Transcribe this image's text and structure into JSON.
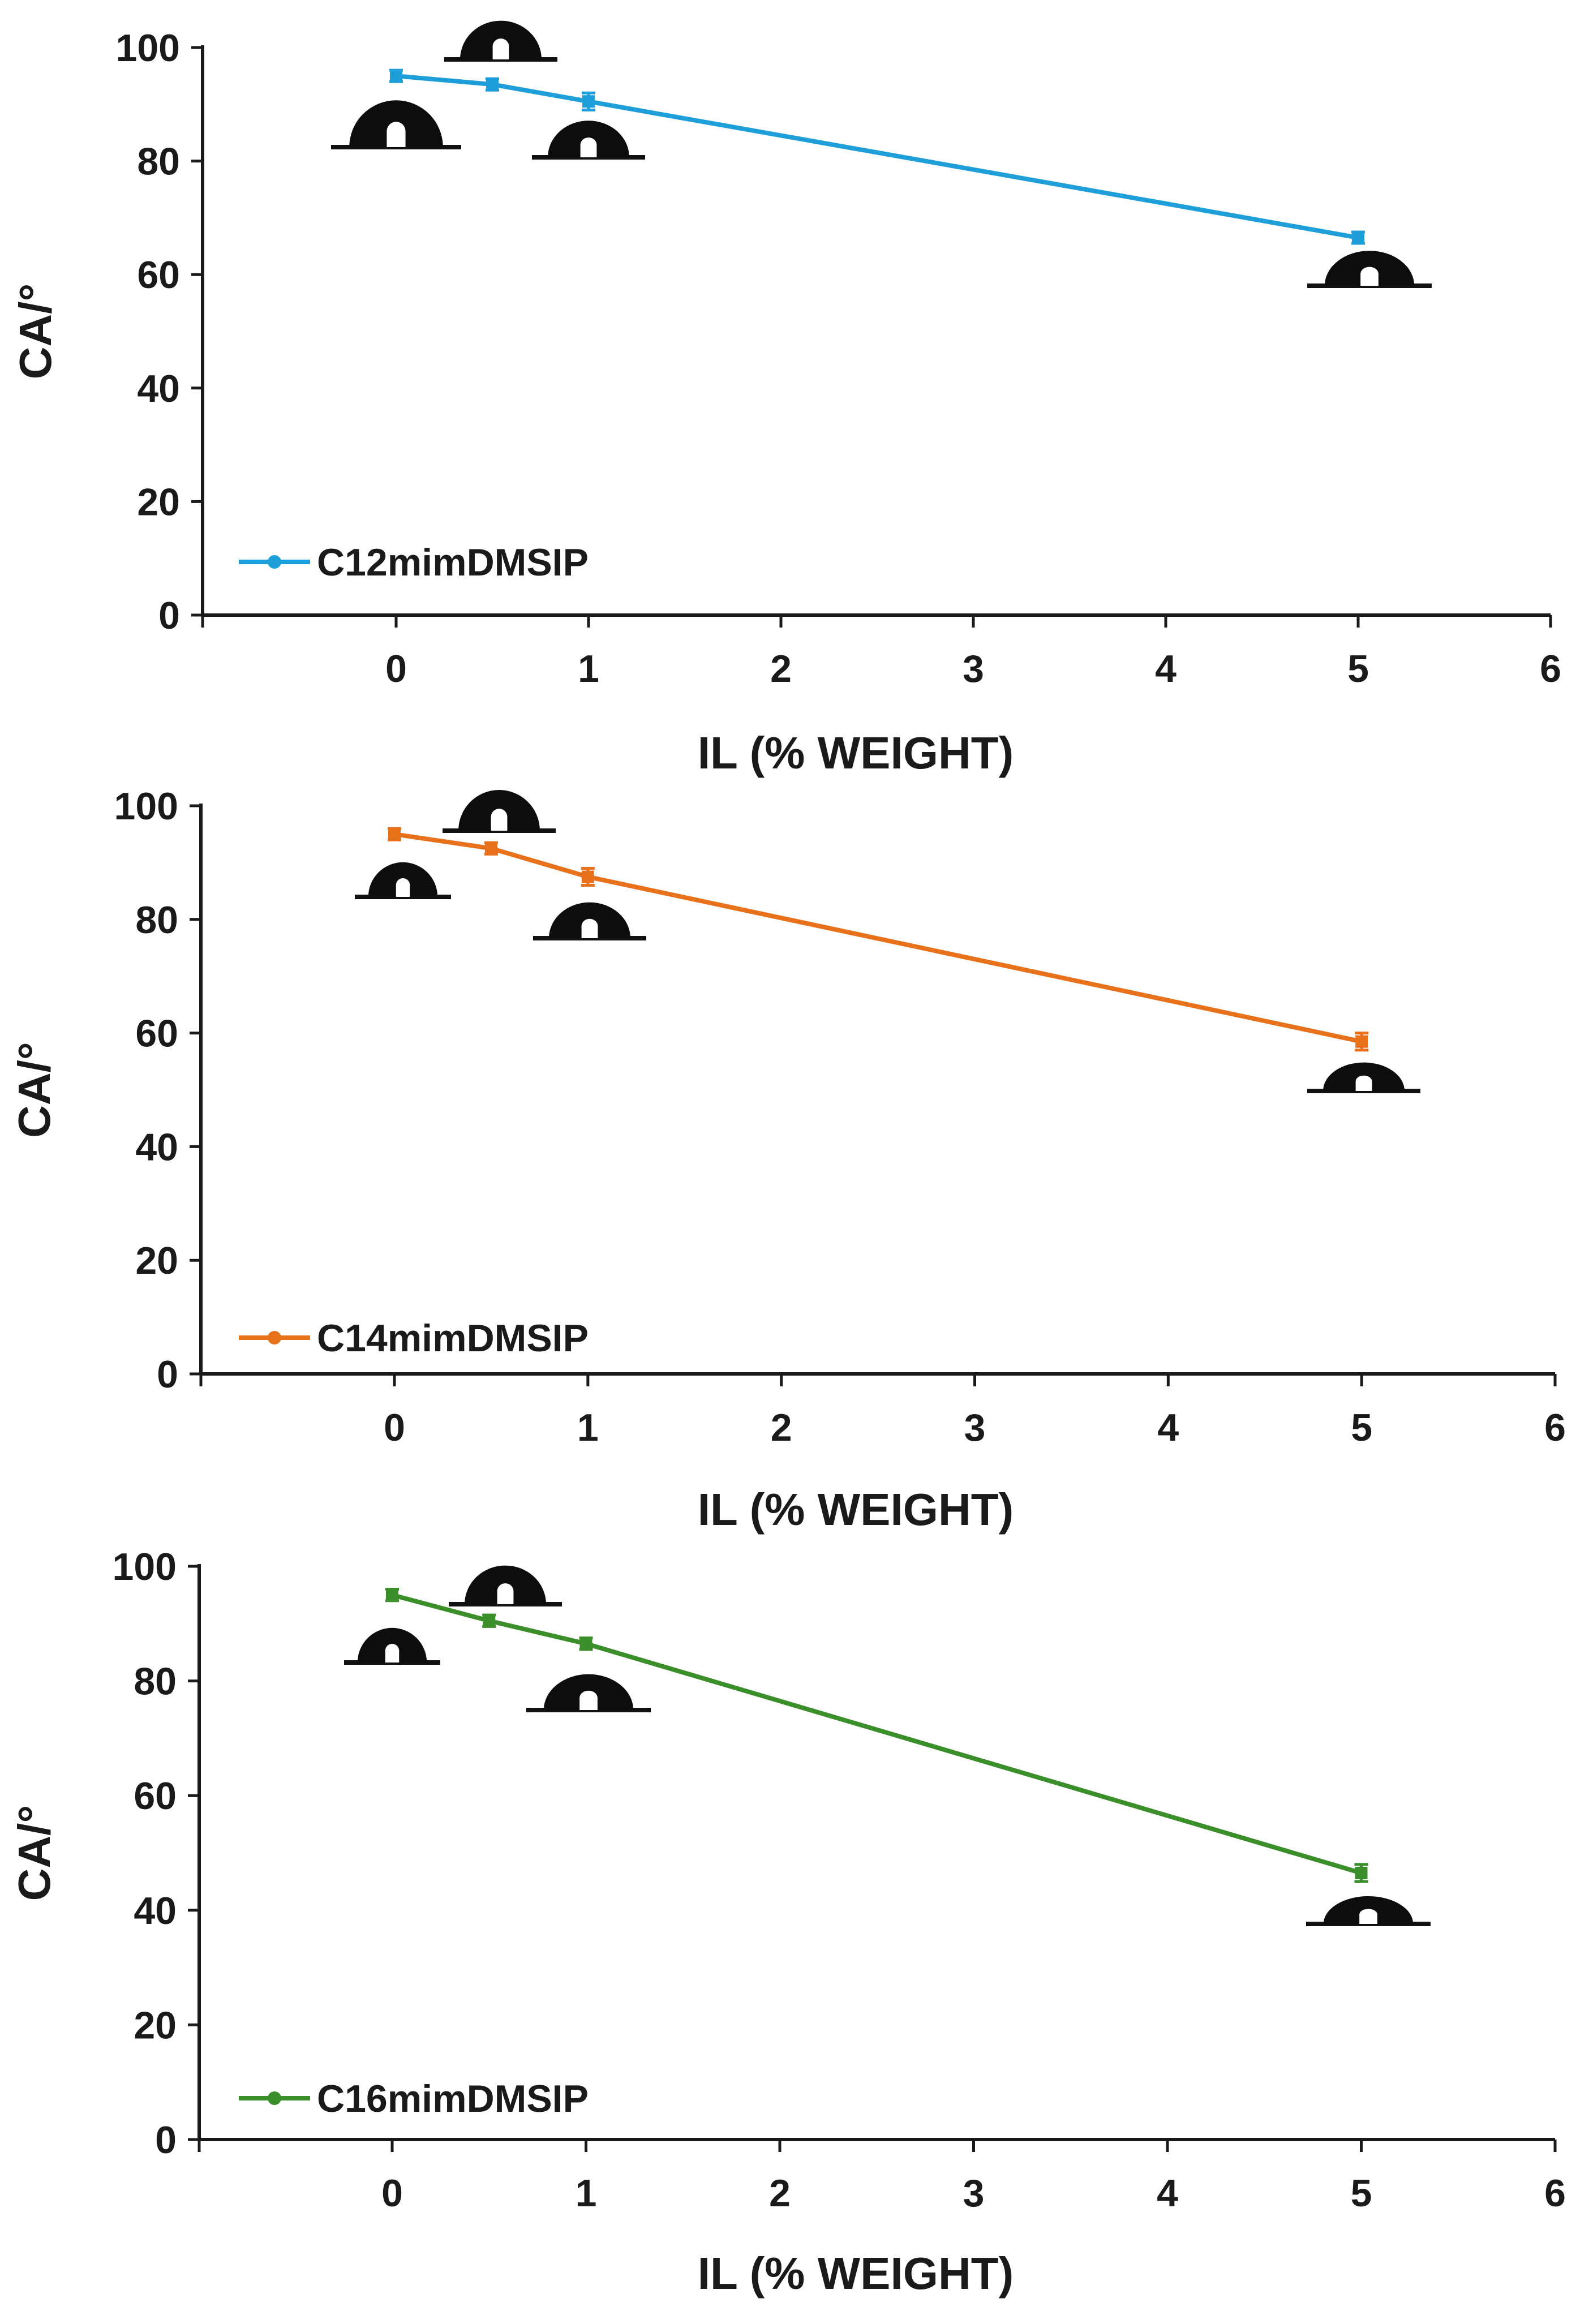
{
  "chart_data": [
    {
      "type": "line",
      "xlabel": "IL (% WEIGHT)",
      "ylabel": "CA/°",
      "xlim": [
        -1,
        6
      ],
      "ylim": [
        0,
        100
      ],
      "x_ticks": [
        0,
        1,
        2,
        3,
        4,
        5,
        6
      ],
      "y_ticks": [
        0,
        20,
        40,
        60,
        80,
        100
      ],
      "legend_position": "bottom-left",
      "series": [
        {
          "name": "C12mimDMSIP",
          "color": "#1E9FD9",
          "x": [
            0,
            0.5,
            1,
            5
          ],
          "y": [
            95,
            93.5,
            90.5,
            66.5
          ],
          "error": [
            1,
            1,
            1.5,
            1
          ]
        }
      ],
      "droplet_images": [
        "droplet-0",
        "droplet-0.5",
        "droplet-1",
        "droplet-5"
      ]
    },
    {
      "type": "line",
      "xlabel": "IL (% WEIGHT)",
      "ylabel": "CA/°",
      "xlim": [
        -1,
        6
      ],
      "ylim": [
        0,
        100
      ],
      "x_ticks": [
        0,
        1,
        2,
        3,
        4,
        5,
        6
      ],
      "y_ticks": [
        0,
        20,
        40,
        60,
        80,
        100
      ],
      "legend_position": "bottom-left",
      "series": [
        {
          "name": "C14mimDMSIP",
          "color": "#E8711C",
          "x": [
            0,
            0.5,
            1,
            5
          ],
          "y": [
            95,
            92.5,
            87.5,
            58.5
          ],
          "error": [
            1,
            1,
            1.5,
            1.5
          ]
        }
      ],
      "droplet_images": [
        "droplet-0",
        "droplet-0.5",
        "droplet-1",
        "droplet-5"
      ]
    },
    {
      "type": "line",
      "xlabel": "IL (% WEIGHT)",
      "ylabel": "CA/°",
      "xlim": [
        -1,
        6
      ],
      "ylim": [
        0,
        100
      ],
      "x_ticks": [
        0,
        1,
        2,
        3,
        4,
        5,
        6
      ],
      "y_ticks": [
        0,
        20,
        40,
        60,
        80,
        100
      ],
      "legend_position": "bottom-left",
      "series": [
        {
          "name": "C16mimDMSIP",
          "color": "#3A8F2A",
          "x": [
            0,
            0.5,
            1,
            5
          ],
          "y": [
            95,
            90.5,
            86.5,
            46.5
          ],
          "error": [
            1,
            1,
            1,
            1.5
          ]
        }
      ],
      "droplet_images": [
        "droplet-0",
        "droplet-0.5",
        "droplet-1",
        "droplet-5"
      ]
    }
  ]
}
